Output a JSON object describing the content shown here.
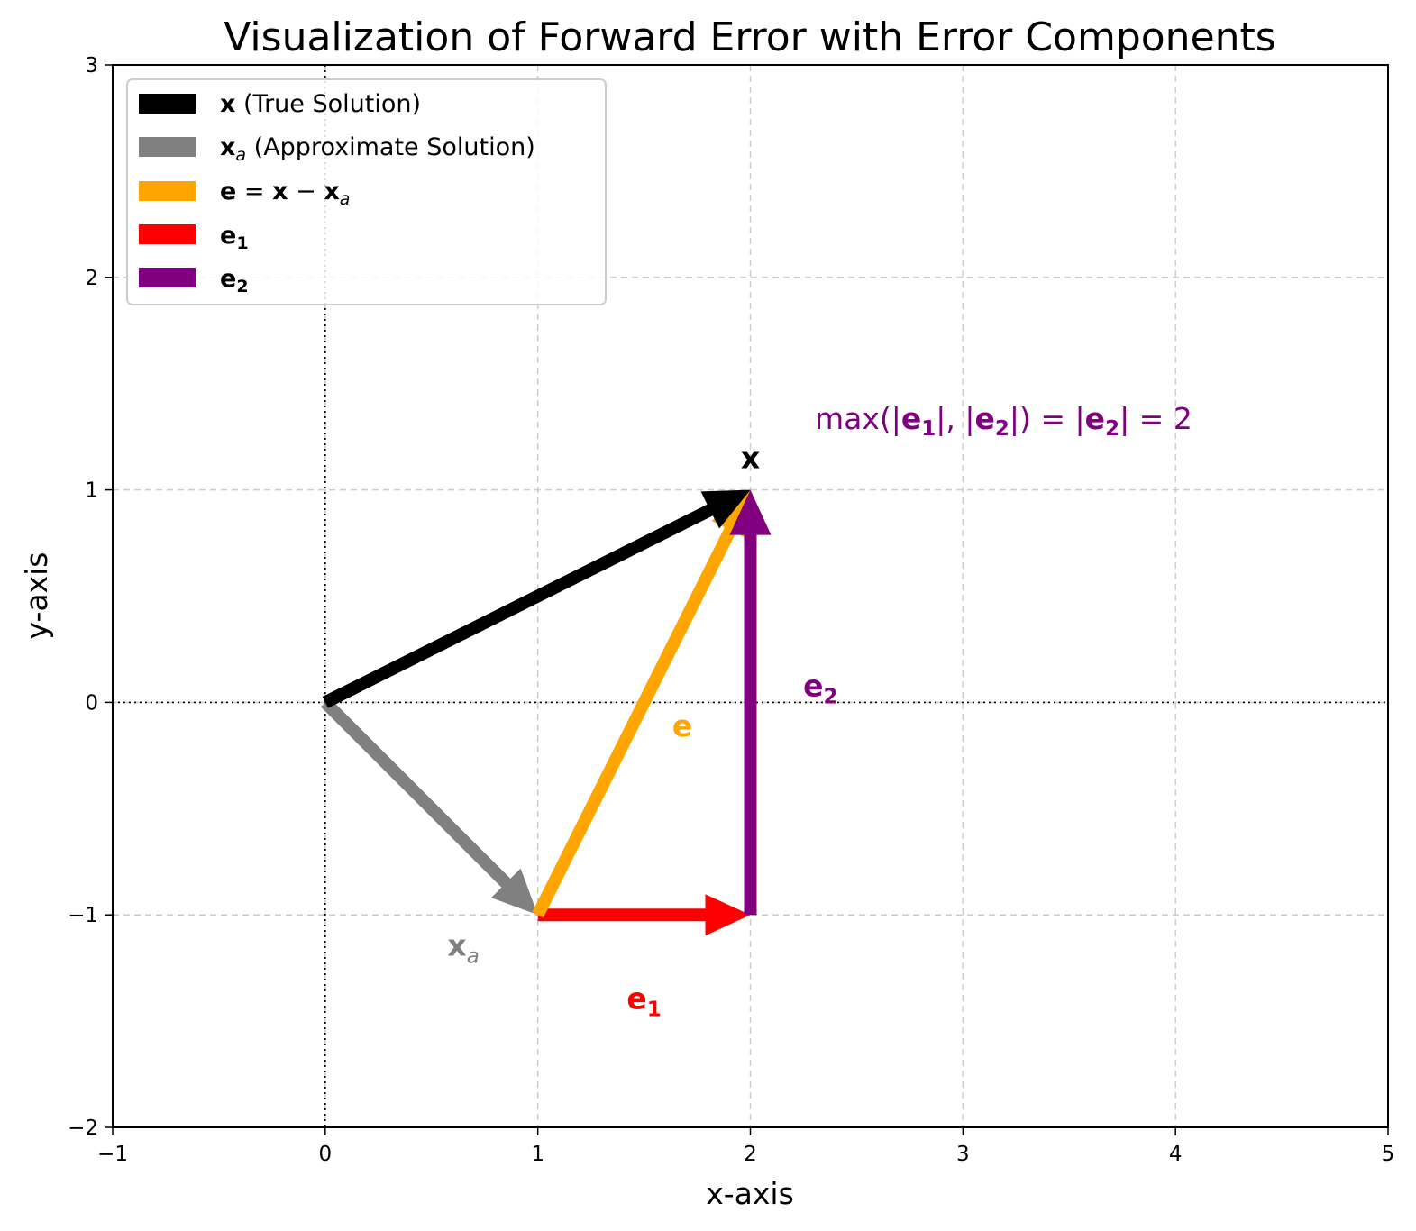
{
  "chart_data": {
    "type": "vector",
    "title": "Visualization of Forward Error with Error Components",
    "xlabel": "x-axis",
    "ylabel": "y-axis",
    "xlim": [
      -1,
      5
    ],
    "ylim": [
      -2,
      3
    ],
    "xticks": [
      -1,
      0,
      1,
      2,
      3,
      4,
      5
    ],
    "yticks": [
      -2,
      -1,
      0,
      1,
      2,
      3
    ],
    "xtick_labels": [
      "−1",
      "0",
      "1",
      "2",
      "3",
      "4",
      "5"
    ],
    "ytick_labels": [
      "−2",
      "−1",
      "0",
      "1",
      "2",
      "3"
    ],
    "grid": true,
    "legend_position": "top-left",
    "vectors": [
      {
        "id": "x",
        "from": [
          0,
          0
        ],
        "to": [
          2,
          1
        ],
        "color": "#000000",
        "label": "x",
        "legend": "(True Solution)"
      },
      {
        "id": "xa",
        "from": [
          0,
          0
        ],
        "to": [
          1,
          -1
        ],
        "color": "#808080",
        "label": "x",
        "sub": "a",
        "legend": "(Approximate Solution)"
      },
      {
        "id": "e",
        "from": [
          1,
          -1
        ],
        "to": [
          2,
          1
        ],
        "color": "#ffa500",
        "label": "e",
        "legend": "e = x − xₐ"
      },
      {
        "id": "e1",
        "from": [
          1,
          -1
        ],
        "to": [
          2,
          -1
        ],
        "color": "#ff0000",
        "label": "e",
        "sub": "1"
      },
      {
        "id": "e2",
        "from": [
          2,
          -1
        ],
        "to": [
          2,
          1
        ],
        "color": "#800080",
        "label": "e",
        "sub": "2"
      }
    ],
    "annotation": {
      "text": "max(|e₁|, |e₂|) = |e₂| = 2",
      "color": "#800080"
    }
  }
}
